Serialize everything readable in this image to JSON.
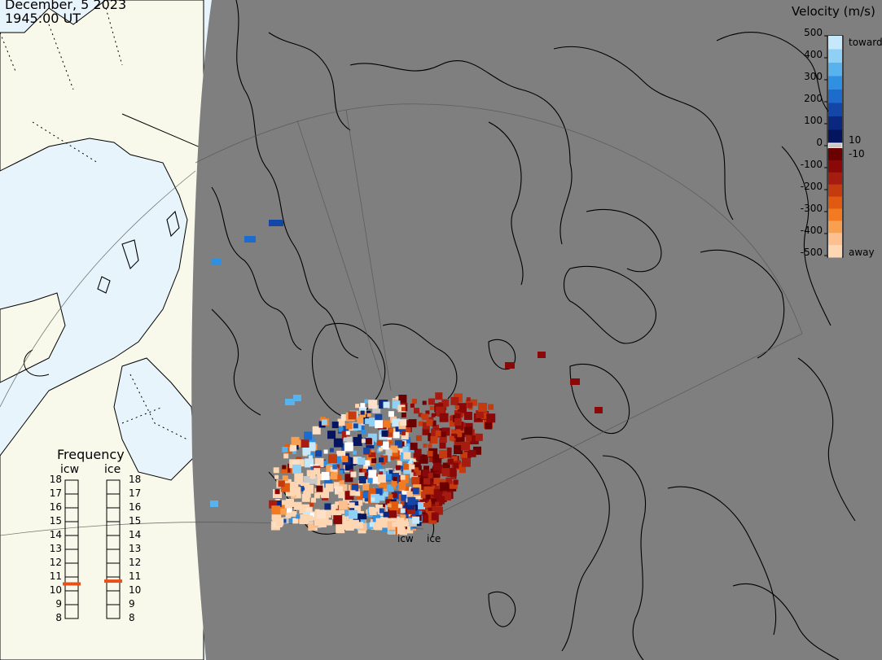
{
  "header": {
    "date": "December, 5 2023",
    "time": "1945:00 UT"
  },
  "colorbar": {
    "title": "Velocity (m/s)",
    "labels": [
      "500",
      "400",
      "300",
      "200",
      "100",
      "0",
      "-100",
      "-200",
      "-300",
      "-400",
      "-500"
    ],
    "inner_labels": [
      "10",
      "-10"
    ],
    "toward_label": "toward",
    "away_label": "away",
    "toward_colors": [
      "#c6e8fb",
      "#8fd0f5",
      "#58b2ee",
      "#2f8fe0",
      "#1d6bcc",
      "#1446a8",
      "#0a2880",
      "#04145e"
    ],
    "away_colors": [
      "#6a0000",
      "#8a0808",
      "#a61c10",
      "#c63a10",
      "#e05a10",
      "#f27a20",
      "#f8a050",
      "#fcc090",
      "#fdd6b4"
    ],
    "zero_color": "#c8c8c8"
  },
  "frequency": {
    "title": "Frequency",
    "columns": [
      {
        "label": "icw",
        "value_mhz": 10.5
      },
      {
        "label": "ice",
        "value_mhz": 10.7
      }
    ],
    "levels": [
      "18",
      "17",
      "16",
      "15",
      "14",
      "13",
      "12",
      "11",
      "10",
      "9",
      "8"
    ],
    "marker_color": "#e8501a"
  },
  "radars": [
    "icw",
    "ice"
  ],
  "map_colors": {
    "ocean_light": "#e8f4fb",
    "land_light": "#f8f9ea",
    "night_shade": "#7f7f7f",
    "coastline": "#000000",
    "grid": "#555555"
  }
}
